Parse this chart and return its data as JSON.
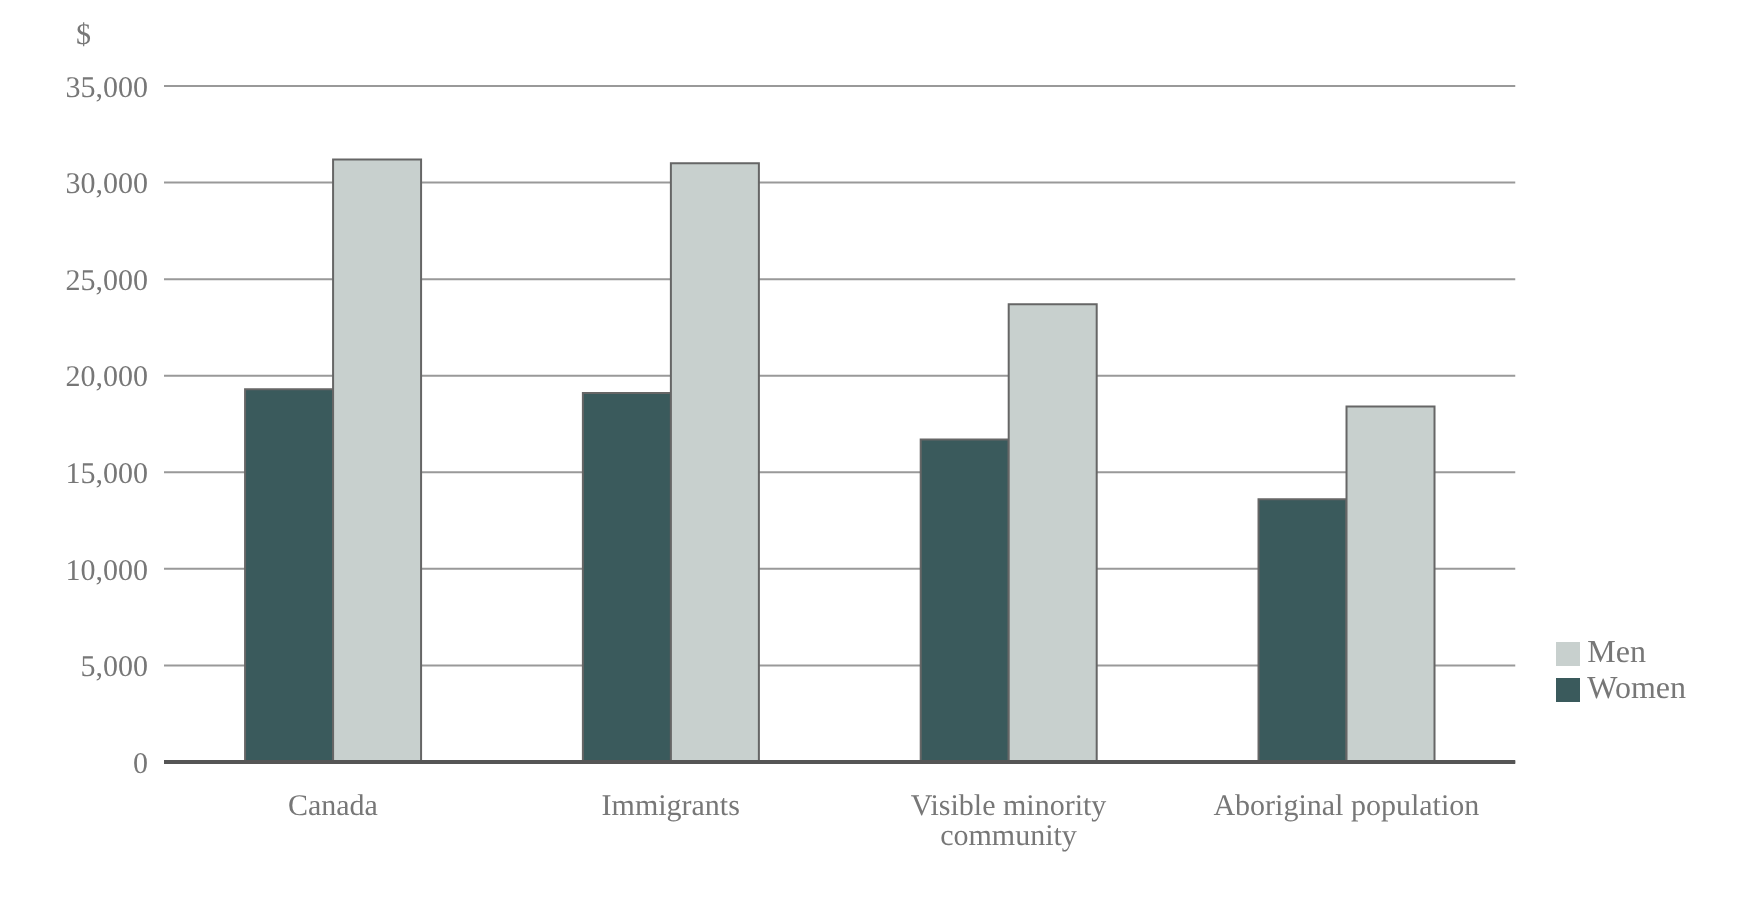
{
  "chart_data": {
    "type": "bar",
    "ylabel": "$",
    "categories": [
      "Canada",
      "Immigrants",
      "Visible minority community",
      "Aboriginal population"
    ],
    "series": [
      {
        "name": "Women",
        "color": "#3a5a5c",
        "values": [
          19300,
          19100,
          16700,
          13600
        ]
      },
      {
        "name": "Men",
        "color": "#c8d0ce",
        "values": [
          31200,
          31000,
          23700,
          18400
        ]
      }
    ],
    "ylim": [
      0,
      35000
    ],
    "yticks": [
      {
        "value": 0,
        "label": "0"
      },
      {
        "value": 5000,
        "label": "5,000"
      },
      {
        "value": 10000,
        "label": "10,000"
      },
      {
        "value": 15000,
        "label": "15,000"
      },
      {
        "value": 20000,
        "label": "20,000"
      },
      {
        "value": 25000,
        "label": "25,000"
      },
      {
        "value": 30000,
        "label": "30,000"
      },
      {
        "value": 35000,
        "label": "35,000"
      }
    ],
    "grid": "y",
    "legend": "right"
  }
}
